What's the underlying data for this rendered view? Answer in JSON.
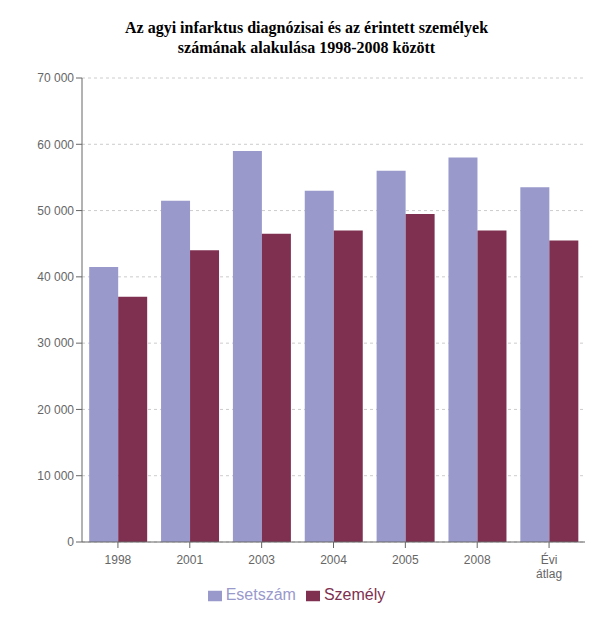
{
  "chart_data": {
    "type": "bar",
    "title": "Az agyi infarktus diagnózisai és az érintett személyek\nszámának alakulása 1998-2008 között",
    "categories": [
      "1998",
      "2001",
      "2003",
      "2004",
      "2005",
      "2008",
      "Évi\nátlag"
    ],
    "series": [
      {
        "name": "Esetszám",
        "color": "#9999cc",
        "values": [
          41500,
          51500,
          59000,
          53000,
          56000,
          58000,
          53500
        ]
      },
      {
        "name": "Személy",
        "color": "#7f3050",
        "values": [
          37000,
          44000,
          46500,
          47000,
          49500,
          47000,
          45500
        ]
      }
    ],
    "ylim": [
      0,
      70000
    ],
    "yticks": [
      0,
      {
        "value": 10000,
        "label": "10 000"
      },
      {
        "value": 20000,
        "label": "20 000"
      },
      {
        "value": 30000,
        "label": "30 000"
      },
      {
        "value": 40000,
        "label": "40 000"
      },
      {
        "value": 50000,
        "label": "50 000"
      },
      {
        "value": 60000,
        "label": "60 000"
      },
      {
        "value": 70000,
        "label": "70 000"
      }
    ],
    "grid": true,
    "legend": "bottom"
  }
}
